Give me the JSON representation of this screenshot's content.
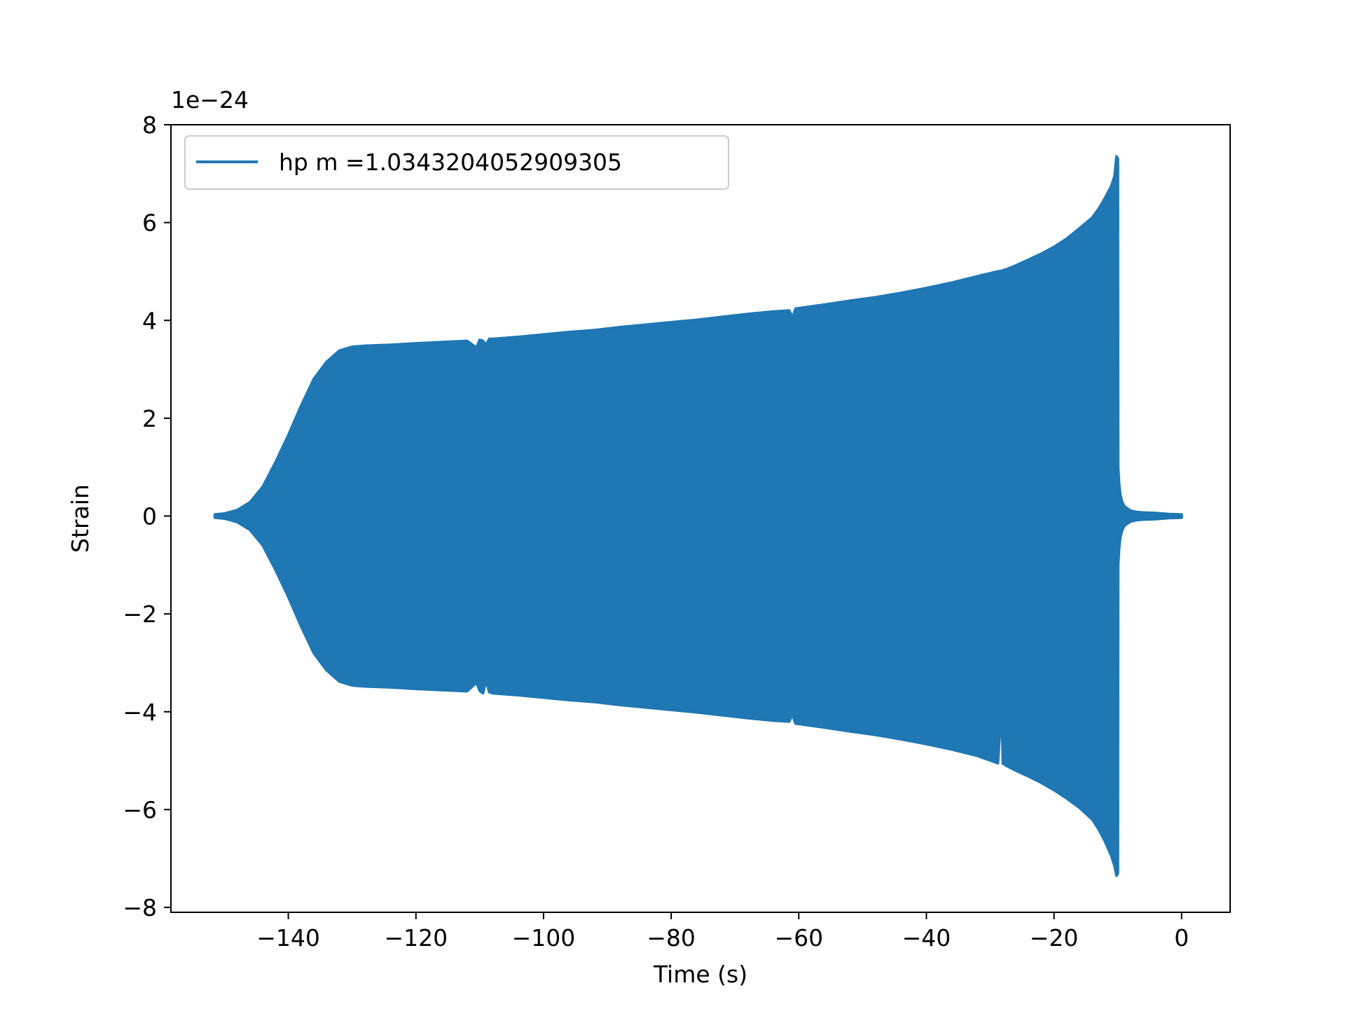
{
  "chart_data": {
    "type": "line",
    "title": "",
    "xlabel": "Time (s)",
    "ylabel": "Strain",
    "y_offset_label": "1e−24",
    "xlim": [
      -158.4,
      7.6
    ],
    "ylim": [
      -8.1,
      8.0
    ],
    "x_ticks": [
      -140,
      -120,
      -100,
      -80,
      -60,
      -40,
      -20,
      0
    ],
    "x_tick_labels": [
      "−140",
      "−120",
      "−100",
      "−80",
      "−60",
      "−40",
      "−20",
      "0"
    ],
    "y_ticks": [
      8,
      6,
      4,
      2,
      0,
      -2,
      -4,
      -6,
      -8
    ],
    "y_tick_labels": [
      "8",
      "6",
      "4",
      "2",
      "0",
      "−2",
      "−4",
      "−6",
      "−8"
    ],
    "grid": false,
    "legend_position": "top-left",
    "series": [
      {
        "name": "hp m =1.0343204052909305",
        "color": "#1f77b4",
        "envelope_x": [
          -151.5,
          -150,
          -148,
          -146,
          -144,
          -142,
          -140,
          -138,
          -136,
          -134,
          -132,
          -130,
          -128,
          -124,
          -120,
          -112,
          -110.5,
          -110,
          -109.5,
          -109,
          -108.5,
          -108,
          -104,
          -100,
          -96,
          -92,
          -88,
          -84,
          -80,
          -76,
          -72,
          -68,
          -64,
          -61.5,
          -61,
          -60.5,
          -56,
          -52,
          -48,
          -44,
          -40,
          -36,
          -32,
          -28.8,
          -28.2,
          -28,
          -27.8,
          -27.5,
          -26,
          -24,
          -22,
          -20,
          -18,
          -16,
          -14,
          -13,
          -12,
          -11,
          -10.5,
          -10.2,
          -10,
          -9.95,
          -9.8,
          -9.6,
          -9.3,
          -9,
          -8.5,
          -8,
          -7,
          -6,
          -4,
          -2,
          0
        ],
        "envelope_upper": [
          0.03,
          0.05,
          0.12,
          0.28,
          0.6,
          1.1,
          1.65,
          2.25,
          2.8,
          3.15,
          3.38,
          3.46,
          3.48,
          3.5,
          3.53,
          3.58,
          3.44,
          3.6,
          3.58,
          3.5,
          3.62,
          3.62,
          3.66,
          3.71,
          3.76,
          3.8,
          3.86,
          3.91,
          3.96,
          4.01,
          4.07,
          4.13,
          4.18,
          4.2,
          4.05,
          4.24,
          4.32,
          4.4,
          4.47,
          4.56,
          4.66,
          4.77,
          4.9,
          5.0,
          5.01,
          5.02,
          5.03,
          5.04,
          5.12,
          5.24,
          5.36,
          5.5,
          5.67,
          5.88,
          6.1,
          6.28,
          6.5,
          6.75,
          6.95,
          7.35,
          7.3,
          1.0,
          0.65,
          0.42,
          0.28,
          0.2,
          0.15,
          0.11,
          0.08,
          0.07,
          0.06,
          0.04,
          0.03
        ],
        "envelope_lower": [
          -0.03,
          -0.05,
          -0.12,
          -0.28,
          -0.6,
          -1.1,
          -1.65,
          -2.25,
          -2.8,
          -3.15,
          -3.38,
          -3.46,
          -3.48,
          -3.5,
          -3.53,
          -3.58,
          -3.4,
          -3.57,
          -3.62,
          -3.35,
          -3.6,
          -3.62,
          -3.66,
          -3.71,
          -3.76,
          -3.8,
          -3.86,
          -3.91,
          -3.96,
          -4.01,
          -4.07,
          -4.13,
          -4.18,
          -4.2,
          -4.05,
          -4.24,
          -4.32,
          -4.4,
          -4.47,
          -4.56,
          -4.66,
          -4.77,
          -4.9,
          -5.05,
          -3.8,
          -5.06,
          -5.07,
          -5.1,
          -5.2,
          -5.32,
          -5.45,
          -5.6,
          -5.77,
          -5.96,
          -6.2,
          -6.4,
          -6.65,
          -6.95,
          -7.15,
          -7.35,
          -7.3,
          -1.0,
          -0.65,
          -0.42,
          -0.28,
          -0.2,
          -0.15,
          -0.11,
          -0.08,
          -0.07,
          -0.06,
          -0.04,
          -0.03
        ]
      }
    ]
  }
}
